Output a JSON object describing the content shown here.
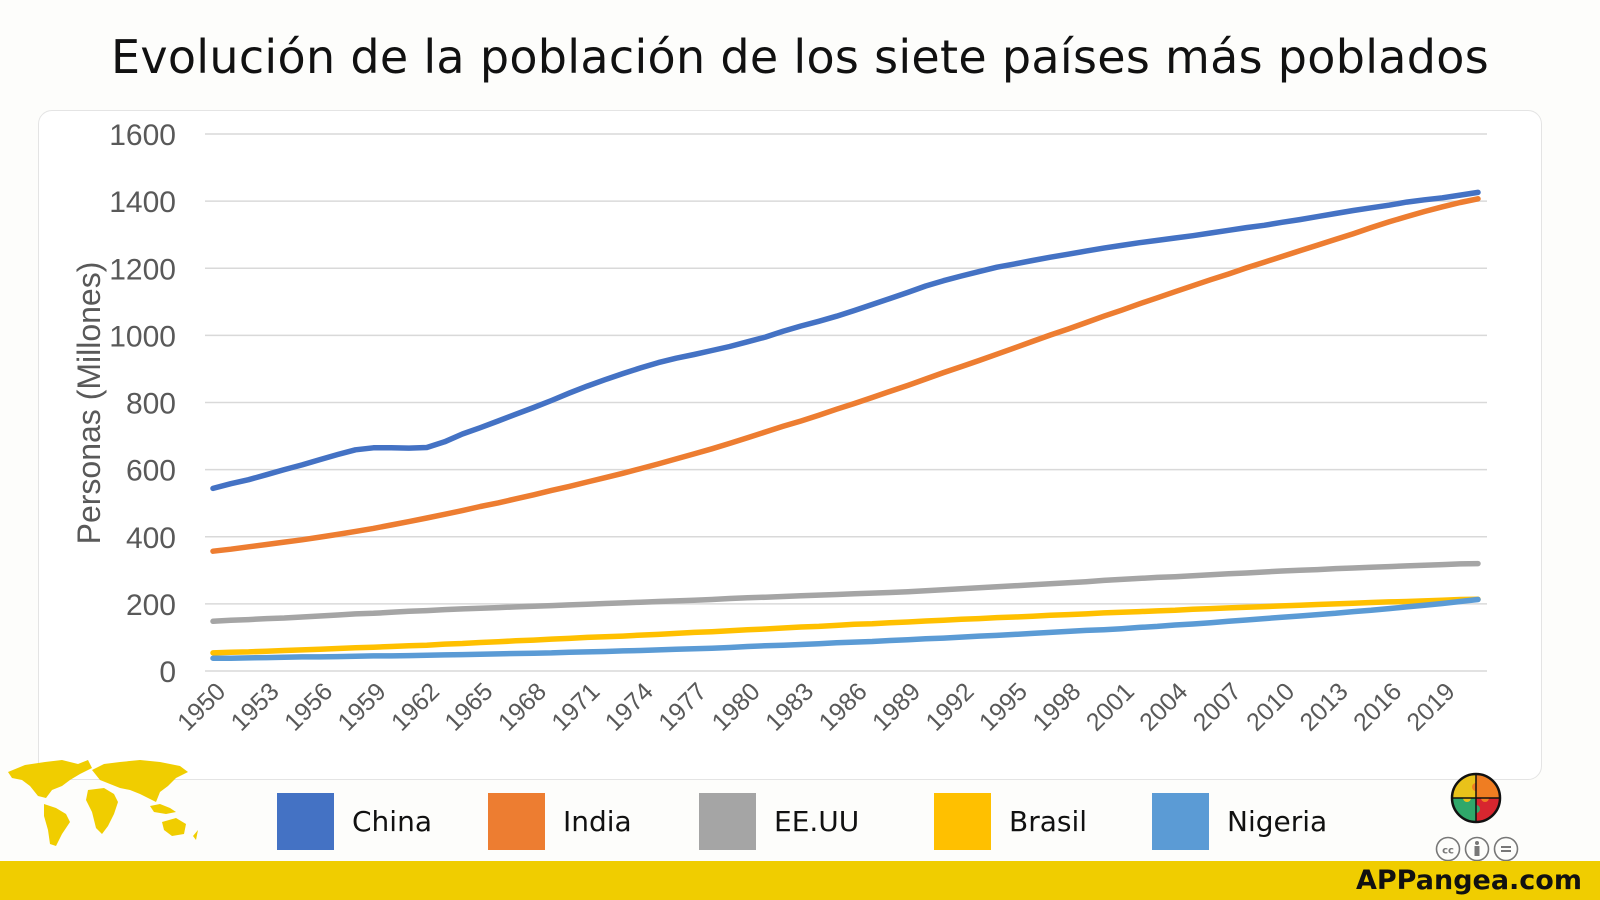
{
  "chart_data": {
    "type": "line",
    "title": "Evolución de la población de los siete países más poblados",
    "xlabel": "",
    "ylabel": "Personas (Millones)",
    "ylim": [
      0,
      1600
    ],
    "yticks": [
      0,
      200,
      400,
      600,
      800,
      1000,
      1200,
      1400,
      1600
    ],
    "xticks": [
      "1950",
      "1953",
      "1956",
      "1959",
      "1962",
      "1965",
      "1968",
      "1971",
      "1974",
      "1977",
      "1980",
      "1983",
      "1986",
      "1989",
      "1992",
      "1995",
      "1998",
      "2001",
      "2004",
      "2007",
      "2010",
      "2013",
      "2016",
      "2019"
    ],
    "x": [
      1950,
      1951,
      1952,
      1953,
      1954,
      1955,
      1956,
      1957,
      1958,
      1959,
      1960,
      1961,
      1962,
      1963,
      1964,
      1965,
      1966,
      1967,
      1968,
      1969,
      1970,
      1971,
      1972,
      1973,
      1974,
      1975,
      1976,
      1977,
      1978,
      1979,
      1980,
      1981,
      1982,
      1983,
      1984,
      1985,
      1986,
      1987,
      1988,
      1989,
      1990,
      1991,
      1992,
      1993,
      1994,
      1995,
      1996,
      1997,
      1998,
      1999,
      2000,
      2001,
      2002,
      2003,
      2004,
      2005,
      2006,
      2007,
      2008,
      2009,
      2010,
      2011,
      2012,
      2013,
      2014,
      2015,
      2016,
      2017,
      2018,
      2019,
      2020,
      2021
    ],
    "grid": true,
    "legend_position": "bottom",
    "series": [
      {
        "name": "China",
        "color": "#4472c4",
        "values": [
          544,
          558,
          570,
          585,
          600,
          614,
          630,
          645,
          659,
          665,
          665,
          664,
          666,
          683,
          706,
          725,
          745,
          765,
          785,
          806,
          828,
          849,
          868,
          886,
          903,
          919,
          932,
          943,
          955,
          967,
          981,
          995,
          1012,
          1028,
          1042,
          1057,
          1074,
          1092,
          1110,
          1128,
          1147,
          1163,
          1177,
          1190,
          1203,
          1213,
          1223,
          1233,
          1242,
          1251,
          1260,
          1268,
          1276,
          1283,
          1290,
          1297,
          1305,
          1313,
          1321,
          1328,
          1337,
          1345,
          1354,
          1363,
          1372,
          1380,
          1388,
          1397,
          1404,
          1410,
          1418,
          1426
        ]
      },
      {
        "name": "India",
        "color": "#ed7d31",
        "values": [
          357,
          363,
          370,
          377,
          384,
          391,
          399,
          407,
          416,
          425,
          435,
          445,
          456,
          467,
          478,
          490,
          501,
          513,
          525,
          538,
          550,
          563,
          576,
          589,
          603,
          617,
          632,
          647,
          662,
          678,
          695,
          712,
          729,
          745,
          762,
          780,
          797,
          815,
          833,
          851,
          870,
          889,
          907,
          925,
          944,
          963,
          982,
          1001,
          1019,
          1038,
          1057,
          1075,
          1094,
          1112,
          1130,
          1148,
          1166,
          1183,
          1201,
          1218,
          1235,
          1252,
          1269,
          1286,
          1303,
          1321,
          1338,
          1354,
          1369,
          1383,
          1396,
          1407
        ]
      },
      {
        "name": "EE.UU",
        "color": "#a5a5a5",
        "values": [
          148,
          151,
          153,
          156,
          158,
          161,
          164,
          167,
          170,
          172,
          175,
          178,
          180,
          183,
          185,
          187,
          189,
          191,
          193,
          195,
          197,
          199,
          201,
          203,
          205,
          207,
          209,
          211,
          213,
          216,
          218,
          220,
          222,
          224,
          226,
          228,
          230,
          232,
          234,
          236,
          239,
          242,
          245,
          248,
          251,
          254,
          257,
          260,
          263,
          266,
          270,
          273,
          276,
          279,
          281,
          284,
          287,
          290,
          292,
          295,
          298,
          300,
          302,
          305,
          307,
          309,
          311,
          313,
          315,
          317,
          319,
          320
        ]
      },
      {
        "name": "Brasil",
        "color": "#ffc000",
        "values": [
          54,
          56,
          57,
          59,
          61,
          63,
          65,
          67,
          69,
          71,
          73,
          75,
          77,
          80,
          82,
          85,
          87,
          90,
          92,
          95,
          97,
          100,
          102,
          104,
          107,
          109,
          112,
          115,
          117,
          120,
          123,
          125,
          128,
          131,
          133,
          136,
          139,
          141,
          144,
          146,
          149,
          151,
          154,
          156,
          159,
          161,
          163,
          166,
          168,
          170,
          173,
          175,
          177,
          179,
          181,
          184,
          186,
          188,
          190,
          192,
          194,
          196,
          198,
          200,
          202,
          204,
          206,
          207,
          209,
          211,
          213,
          214
        ]
      },
      {
        "name": "Nigeria",
        "color": "#5b9bd5",
        "values": [
          38,
          38,
          39,
          40,
          41,
          42,
          42,
          43,
          44,
          45,
          45,
          46,
          47,
          48,
          49,
          50,
          51,
          52,
          53,
          54,
          56,
          57,
          58,
          60,
          61,
          63,
          65,
          66,
          68,
          70,
          73,
          75,
          77,
          79,
          81,
          84,
          86,
          88,
          91,
          93,
          96,
          98,
          101,
          104,
          106,
          109,
          112,
          115,
          118,
          121,
          123,
          126,
          130,
          133,
          137,
          140,
          144,
          148,
          152,
          156,
          160,
          164,
          168,
          172,
          177,
          181,
          186,
          191,
          196,
          201,
          207,
          213
        ]
      }
    ]
  },
  "legend": {
    "items": [
      {
        "label": "China",
        "color": "#4472c4"
      },
      {
        "label": "India",
        "color": "#ed7d31"
      },
      {
        "label": "EE.UU",
        "color": "#a5a5a5"
      },
      {
        "label": "Brasil",
        "color": "#ffc000"
      },
      {
        "label": "Nigeria",
        "color": "#5b9bd5"
      }
    ]
  },
  "branding": {
    "site": "APPangea.com",
    "accent_color": "#f0cd00"
  }
}
